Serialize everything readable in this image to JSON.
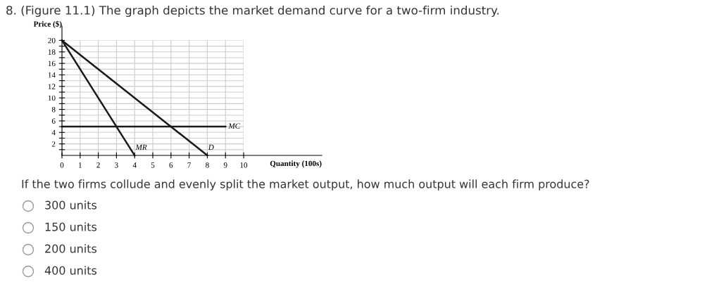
{
  "chart_data": {
    "type": "line",
    "title": "8. (Figure 11.1) The graph depicts the market demand curve for a two-firm industry.",
    "xlabel": "Quantity (100s)",
    "ylabel": "Price ($)",
    "series": [
      {
        "name": "MR",
        "color": "#1a1a1a",
        "x": [
          0,
          4
        ],
        "values": [
          20,
          0
        ]
      },
      {
        "name": "D",
        "color": "#1a1a1a",
        "x": [
          0,
          8
        ],
        "values": [
          20,
          0
        ]
      },
      {
        "name": "MC",
        "color": "#1a1a1a",
        "x": [
          0,
          9
        ],
        "values": [
          5,
          5
        ]
      }
    ],
    "xlim": [
      0,
      14.3
    ],
    "ylim": [
      0,
      22.5
    ],
    "xticks": [
      0,
      1,
      2,
      3,
      4,
      5,
      6,
      7,
      8,
      9,
      10
    ],
    "yticks": [
      {
        "value": 1,
        "label": null
      },
      2,
      {
        "value": 3,
        "label": null
      },
      4,
      {
        "value": 5,
        "label": null
      },
      6,
      {
        "value": 7,
        "label": null
      },
      8,
      {
        "value": 9,
        "label": null
      },
      10,
      {
        "value": 11,
        "label": null
      },
      12,
      {
        "value": 13,
        "label": null
      },
      14,
      {
        "value": 15,
        "label": null
      },
      16,
      {
        "value": 17,
        "label": null
      },
      18,
      {
        "value": 19,
        "label": null
      },
      20
    ],
    "grid": true,
    "legend": false,
    "marker": "none",
    "line_style": "solid",
    "annotations": [
      "If the two firms collude and evenly split the market output, how much output will each firm produce?",
      "300 units",
      "150 units",
      "200 units",
      "400 units"
    ]
  }
}
